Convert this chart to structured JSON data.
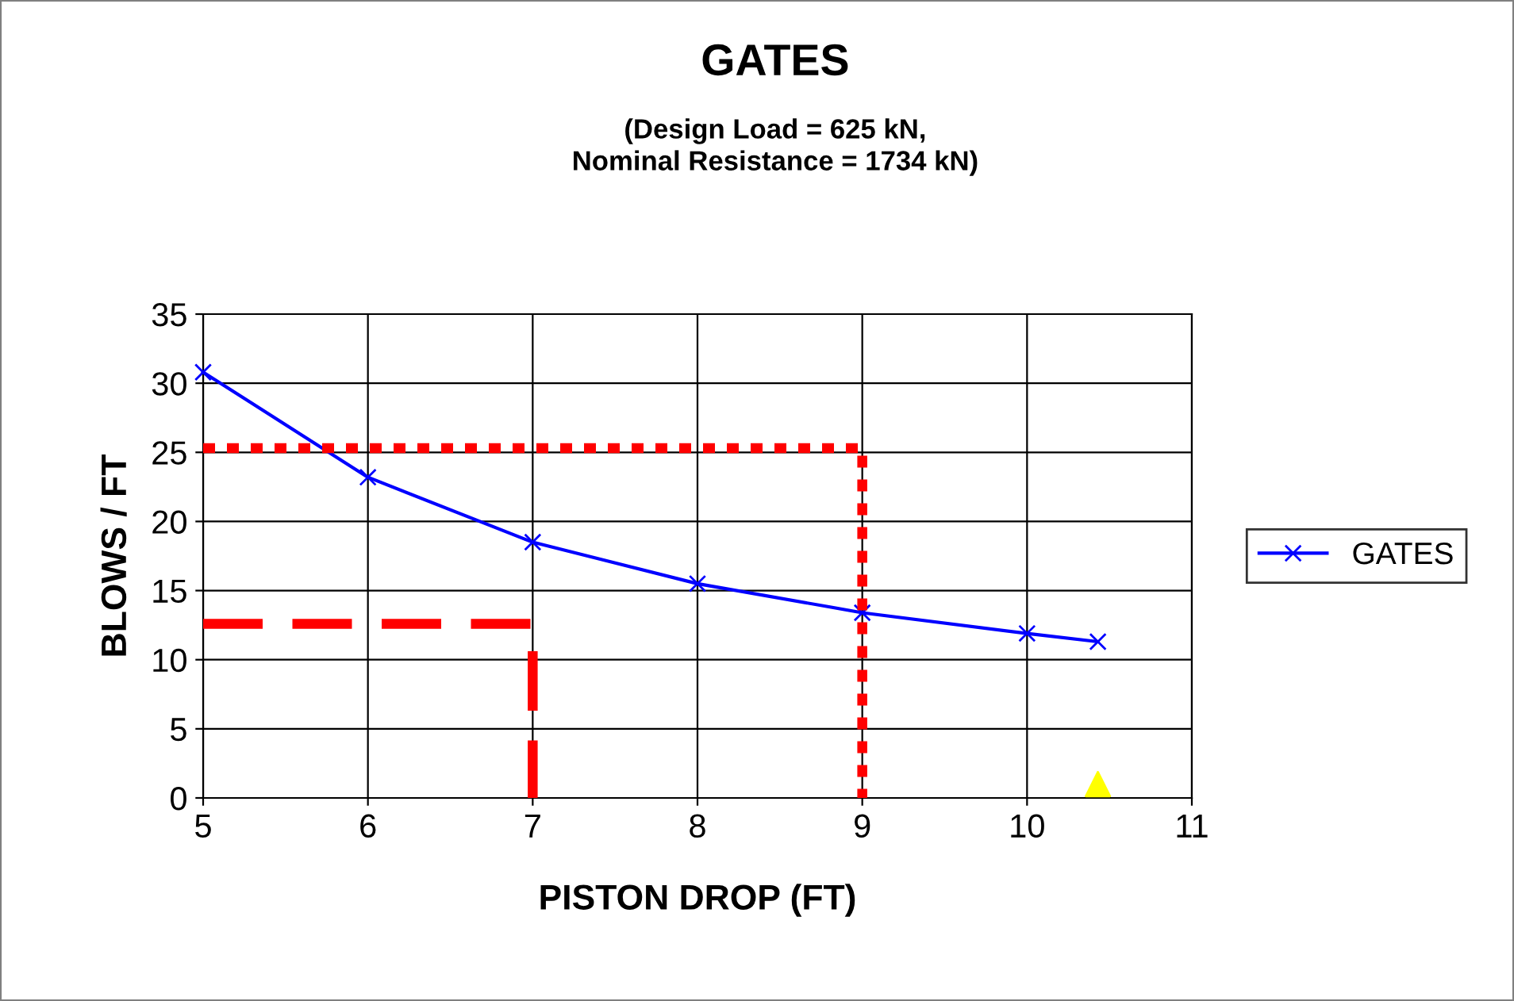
{
  "chart_data": {
    "type": "line",
    "title": "GATES",
    "subtitle": "(Design Load = 625 kN,\nNominal Resistance = 1734 kN)",
    "xlabel": "PISTON DROP (FT)",
    "ylabel": "BLOWS / FT",
    "xlim": [
      5,
      11
    ],
    "xticks": [
      5,
      6,
      7,
      8,
      9,
      10,
      11
    ],
    "ylim": [
      0,
      35
    ],
    "yticks": [
      0,
      5,
      10,
      15,
      20,
      25,
      30,
      35
    ],
    "grid": true,
    "legend": "right",
    "series": [
      {
        "name": "GATES",
        "color": "#0000ff",
        "marker": "cross",
        "line_style": "solid",
        "x": [
          5,
          6,
          7,
          8,
          9,
          10,
          10.43
        ],
        "values": [
          30.8,
          23.2,
          18.5,
          15.5,
          13.4,
          11.9,
          11.3
        ]
      },
      {
        "color": "#ff0000",
        "marker": "none",
        "line_style": "dotted",
        "x": [
          5,
          9,
          9
        ],
        "values": [
          25.3,
          25.3,
          0
        ]
      },
      {
        "color": "#ff0000",
        "marker": "none",
        "line_style": "dashed",
        "x": [
          5,
          7,
          7
        ],
        "values": [
          12.6,
          12.6,
          0
        ]
      },
      {
        "type": "scatter",
        "color": "#ffff00",
        "marker": "triangle",
        "x": [
          10.43
        ],
        "values": [
          1
        ]
      }
    ]
  }
}
